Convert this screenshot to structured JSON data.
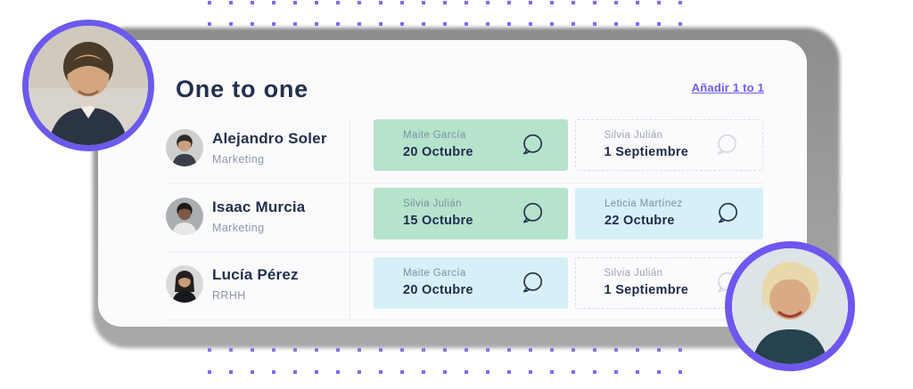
{
  "header": {
    "title": "One to one",
    "add_link_label": "Añadir 1 to 1"
  },
  "people": [
    {
      "name": "Alejandro Soler",
      "department": "Marketing",
      "meetings": [
        {
          "with": "Maite García",
          "date": "20 Octubre",
          "variant": "green"
        },
        {
          "with": "Silvia Julián",
          "date": "1 Septiembre",
          "variant": "dashed"
        }
      ]
    },
    {
      "name": "Isaac Murcia",
      "department": "Marketing",
      "meetings": [
        {
          "with": "Silvia Julián",
          "date": "15 Octubre",
          "variant": "green"
        },
        {
          "with": "Leticia Martínez",
          "date": "22 Octubre",
          "variant": "blue"
        }
      ]
    },
    {
      "name": "Lucía Pérez",
      "department": "RRHH",
      "meetings": [
        {
          "with": "Maite García",
          "date": "20 Octubre",
          "variant": "blue"
        },
        {
          "with": "Silvia Julián",
          "date": "1 Septiembre",
          "variant": "dashed"
        }
      ]
    }
  ],
  "icons": {
    "chat_bubble": "speech-bubble-outline-icon",
    "dot_pattern": "purple-square-dots"
  },
  "colors": {
    "accent_purple": "#6C5CE7",
    "avatar_ring_purple": "#6B5AEE",
    "card_green": "#B5E3CC",
    "card_blue": "#D6F0F7",
    "navy_text": "#22304E",
    "gray_text": "#8D98A9",
    "dot_purple": "#7B6CF0",
    "ghost_gray": "#969696"
  }
}
